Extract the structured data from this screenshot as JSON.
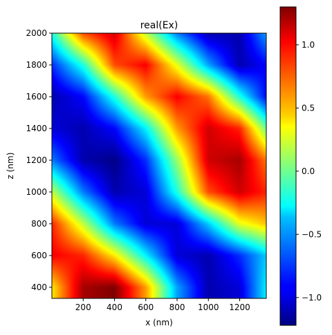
{
  "chart_data": {
    "type": "heatmap",
    "title": "real(Ex)",
    "xlabel": "x (nm)",
    "ylabel": "z (nm)",
    "xlim": [
      0,
      1370
    ],
    "ylim": [
      330,
      2000
    ],
    "x_ticks": [
      200,
      400,
      600,
      800,
      1000,
      1200
    ],
    "y_ticks": [
      400,
      600,
      800,
      1000,
      1200,
      1400,
      1600,
      1800,
      2000
    ],
    "colormap": "jet",
    "colorbar": {
      "range": [
        -1.22,
        1.3
      ],
      "ticks": [
        -1.0,
        -0.5,
        0.0,
        0.5,
        1.0
      ],
      "tick_labels": [
        "−1.0",
        "−0.5",
        "0.0",
        "0.5",
        "1.0"
      ]
    },
    "field_samples": {
      "x": [
        0,
        200,
        400,
        600,
        800,
        1000,
        1200,
        1370
      ],
      "z": [
        2000,
        1800,
        1600,
        1400,
        1200,
        1000,
        800,
        600,
        400
      ],
      "values": [
        [
          -0.2,
          0.8,
          1.1,
          0.2,
          -0.6,
          -1.1,
          -1.1,
          -0.5
        ],
        [
          -0.8,
          -0.2,
          0.8,
          1.0,
          0.3,
          -0.5,
          -1.1,
          -0.9
        ],
        [
          -1.1,
          -0.9,
          -0.2,
          0.6,
          1.0,
          0.7,
          -0.2,
          -0.9
        ],
        [
          -1.0,
          -1.1,
          -0.9,
          -0.3,
          0.6,
          1.1,
          0.9,
          0.0
        ],
        [
          -0.6,
          -1.1,
          -1.2,
          -0.8,
          0.1,
          1.1,
          1.2,
          0.7
        ],
        [
          0.2,
          -0.6,
          -1.1,
          -1.0,
          -0.2,
          0.8,
          1.1,
          0.9
        ],
        [
          0.9,
          0.2,
          -0.6,
          -1.0,
          -1.0,
          -0.4,
          0.3,
          0.5
        ],
        [
          1.0,
          0.9,
          0.4,
          -0.3,
          -1.0,
          -1.1,
          -0.8,
          -0.4
        ],
        [
          0.4,
          1.2,
          1.3,
          0.6,
          -0.5,
          -1.1,
          -1.0,
          -0.3
        ]
      ]
    }
  }
}
